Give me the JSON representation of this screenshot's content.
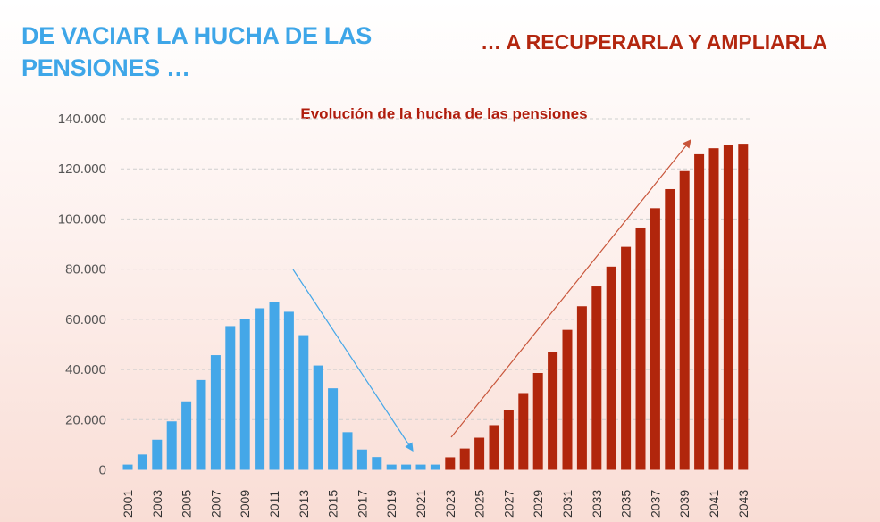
{
  "headline_left": "DE VACIAR LA HUCHA DE LAS PENSIONES …",
  "headline_right": "… A RECUPERARLA Y AMPLIARLA",
  "colors": {
    "decline": "#44a7e8",
    "recovery": "#b1260c",
    "title": "#b01c0c"
  },
  "chart_data": {
    "type": "bar",
    "title": "Evolución de la hucha de las pensiones",
    "xlabel": "",
    "ylabel": "",
    "ylim": [
      0,
      140000
    ],
    "yticks": [
      "0",
      "20.000",
      "40.000",
      "60.000",
      "80.000",
      "100.000",
      "120.000",
      "140.000"
    ],
    "grid": true,
    "categories": [
      "2001",
      "2002",
      "2003",
      "2004",
      "2005",
      "2006",
      "2007",
      "2008",
      "2009",
      "2010",
      "2011",
      "2012",
      "2013",
      "2014",
      "2015",
      "2016",
      "2017",
      "2018",
      "2019",
      "2020",
      "2021",
      "2022",
      "2023",
      "2024",
      "2025",
      "2026",
      "2027",
      "2028",
      "2029",
      "2030",
      "2031",
      "2032",
      "2033",
      "2034",
      "2035",
      "2036",
      "2037",
      "2038",
      "2039",
      "2040",
      "2041",
      "2042",
      "2043"
    ],
    "xtick_labels": [
      "2001",
      "2003",
      "2005",
      "2007",
      "2009",
      "2011",
      "2013",
      "2015",
      "2017",
      "2019",
      "2021",
      "2023",
      "2025",
      "2027",
      "2029",
      "2031",
      "2033",
      "2035",
      "2037",
      "2039",
      "2041",
      "2043"
    ],
    "values": [
      2100,
      6100,
      12000,
      19300,
      27300,
      35800,
      45700,
      57300,
      60100,
      64400,
      66800,
      63000,
      53700,
      41600,
      32500,
      15000,
      8100,
      5100,
      2100,
      2100,
      2100,
      2100,
      5000,
      8500,
      12800,
      17800,
      23800,
      30600,
      38600,
      46900,
      55800,
      65200,
      73100,
      81000,
      88900,
      96600,
      104300,
      111900,
      119100,
      125800,
      128200,
      129600,
      130000
    ],
    "series_split": {
      "decline_years": "2001-2022",
      "recovery_years": "2023-2043"
    },
    "annotations": [
      {
        "type": "arrow",
        "direction": "down",
        "from": "2012",
        "to": "2021",
        "color": "#44a7e8"
      },
      {
        "type": "arrow",
        "direction": "up",
        "from": "2023",
        "to": "2040",
        "color": "#c8553a"
      }
    ]
  }
}
